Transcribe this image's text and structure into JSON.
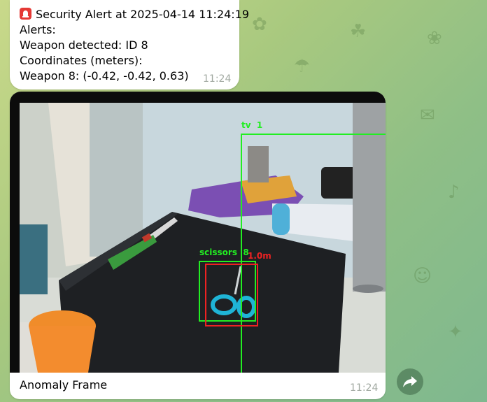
{
  "messages": [
    {
      "lines": [
        "Security Alert at 2025-04-14 11:24:19",
        "Alerts:",
        "Weapon detected: ID 8",
        "Coordinates (meters):",
        "Weapon 8: (-0.42, -0.42, 0.63)"
      ],
      "time": "11:24"
    },
    {
      "caption": "Anomaly Frame",
      "time": "11:24",
      "detections": [
        {
          "label": "tv  1",
          "color": "#22ee22"
        },
        {
          "label": "scissors  8",
          "color": "#22ee22"
        },
        {
          "label": "1.0m",
          "color": "#ee2222"
        }
      ]
    }
  ],
  "colors": {
    "detection_green": "#22ee22",
    "detection_red": "#ee2222",
    "alert_icon": "#e53935"
  }
}
